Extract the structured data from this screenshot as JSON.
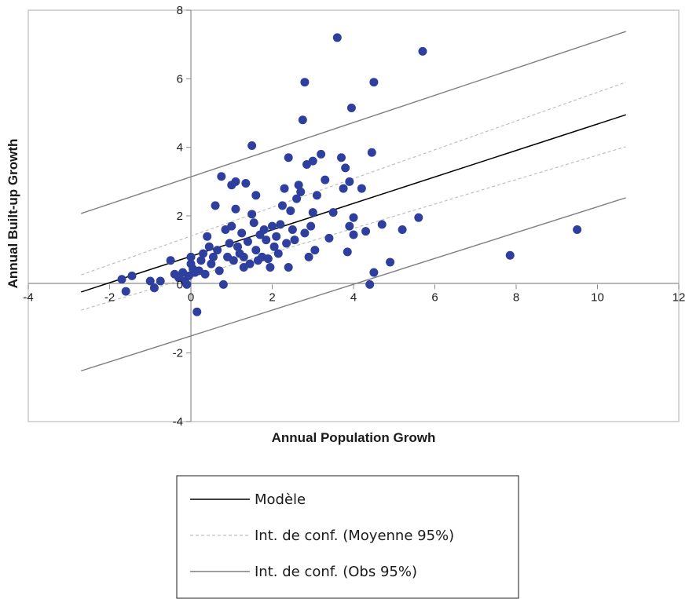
{
  "chart_data": {
    "type": "scatter",
    "xlabel": "Annual Population Growh",
    "ylabel": "Annual Built-up Growth",
    "xlim": [
      -4,
      12
    ],
    "ylim": [
      -4,
      8
    ],
    "x_ticks": [
      "-4",
      "-2",
      "0",
      "2",
      "4",
      "6",
      "8",
      "10",
      "12"
    ],
    "y_ticks": [
      "-4",
      "-2",
      "0",
      "2",
      "4",
      "6",
      "8"
    ],
    "grid": false,
    "legend_position": "bottom",
    "colors": {
      "points": "#2e3f9e",
      "model": "#000000",
      "mean_ci": "#bfbfbf",
      "obs_ci": "#7f7f7f",
      "axis": "#8c8c8c",
      "frame": "#c8c8c8"
    },
    "lines": [
      {
        "name": "Modèle",
        "style": "solid",
        "x": [
          -2.7,
          10.7
        ],
        "y": [
          -0.22,
          4.95
        ]
      },
      {
        "name": "Int. de conf. (Moyenne 95%)",
        "style": "dashed",
        "x": [
          -2.7,
          10.7
        ],
        "y": [
          0.28,
          5.9
        ]
      },
      {
        "name": "Int. de conf. (Moyenne 95%)",
        "style": "dashed",
        "x": [
          -2.7,
          10.7
        ],
        "y": [
          -0.75,
          4.02
        ]
      },
      {
        "name": "Int. de conf. (Obs 95%)",
        "style": "solid",
        "x": [
          -2.7,
          10.7
        ],
        "y": [
          2.07,
          7.38
        ]
      },
      {
        "name": "Int. de conf. (Obs 95%)",
        "style": "solid",
        "x": [
          -2.7,
          10.7
        ],
        "y": [
          -2.52,
          2.53
        ]
      }
    ],
    "points": [
      [
        -1.7,
        0.15
      ],
      [
        -1.6,
        -0.2
      ],
      [
        -1.45,
        0.25
      ],
      [
        -1.0,
        0.1
      ],
      [
        -0.9,
        -0.1
      ],
      [
        -0.75,
        0.1
      ],
      [
        -0.5,
        0.7
      ],
      [
        -0.4,
        0.3
      ],
      [
        -0.3,
        0.2
      ],
      [
        -0.2,
        0.35
      ],
      [
        -0.15,
        0.1
      ],
      [
        -0.1,
        0.0
      ],
      [
        -0.05,
        0.25
      ],
      [
        0.0,
        0.8
      ],
      [
        0.0,
        0.6
      ],
      [
        0.05,
        0.45
      ],
      [
        0.1,
        0.35
      ],
      [
        0.15,
        -0.8
      ],
      [
        0.2,
        0.4
      ],
      [
        0.25,
        0.7
      ],
      [
        0.3,
        0.9
      ],
      [
        0.35,
        0.3
      ],
      [
        0.4,
        1.4
      ],
      [
        0.45,
        1.1
      ],
      [
        0.5,
        0.6
      ],
      [
        0.55,
        0.8
      ],
      [
        0.6,
        2.3
      ],
      [
        0.65,
        1.0
      ],
      [
        0.7,
        0.4
      ],
      [
        0.75,
        3.15
      ],
      [
        0.8,
        0.0
      ],
      [
        0.85,
        1.6
      ],
      [
        0.9,
        0.8
      ],
      [
        0.95,
        1.2
      ],
      [
        1.0,
        2.9
      ],
      [
        1.0,
        1.7
      ],
      [
        1.05,
        0.7
      ],
      [
        1.1,
        3.0
      ],
      [
        1.1,
        2.2
      ],
      [
        1.15,
        1.1
      ],
      [
        1.2,
        0.9
      ],
      [
        1.25,
        1.5
      ],
      [
        1.3,
        0.5
      ],
      [
        1.3,
        0.8
      ],
      [
        1.35,
        2.95
      ],
      [
        1.4,
        1.25
      ],
      [
        1.45,
        0.6
      ],
      [
        1.5,
        2.05
      ],
      [
        1.5,
        4.05
      ],
      [
        1.55,
        1.8
      ],
      [
        1.6,
        1.0
      ],
      [
        1.6,
        2.6
      ],
      [
        1.65,
        0.7
      ],
      [
        1.7,
        1.45
      ],
      [
        1.75,
        0.8
      ],
      [
        1.8,
        1.6
      ],
      [
        1.85,
        1.3
      ],
      [
        1.9,
        0.75
      ],
      [
        1.95,
        0.5
      ],
      [
        2.0,
        1.7
      ],
      [
        2.05,
        1.1
      ],
      [
        2.1,
        1.4
      ],
      [
        2.15,
        0.9
      ],
      [
        2.2,
        1.75
      ],
      [
        2.25,
        2.3
      ],
      [
        2.3,
        2.8
      ],
      [
        2.35,
        1.2
      ],
      [
        2.4,
        0.5
      ],
      [
        2.4,
        3.7
      ],
      [
        2.45,
        2.15
      ],
      [
        2.5,
        1.6
      ],
      [
        2.55,
        1.3
      ],
      [
        2.6,
        2.5
      ],
      [
        2.65,
        2.9
      ],
      [
        2.7,
        2.7
      ],
      [
        2.75,
        4.8
      ],
      [
        2.8,
        5.9
      ],
      [
        2.8,
        1.5
      ],
      [
        2.85,
        3.5
      ],
      [
        2.9,
        0.8
      ],
      [
        2.95,
        1.7
      ],
      [
        3.0,
        3.6
      ],
      [
        3.0,
        2.1
      ],
      [
        3.05,
        1.0
      ],
      [
        3.1,
        2.6
      ],
      [
        3.2,
        3.8
      ],
      [
        3.3,
        3.05
      ],
      [
        3.4,
        1.35
      ],
      [
        3.5,
        2.1
      ],
      [
        3.6,
        7.2
      ],
      [
        3.7,
        3.7
      ],
      [
        3.75,
        2.8
      ],
      [
        3.8,
        3.4
      ],
      [
        3.85,
        0.95
      ],
      [
        3.9,
        3.0
      ],
      [
        3.9,
        1.7
      ],
      [
        3.95,
        5.15
      ],
      [
        4.0,
        1.45
      ],
      [
        4.0,
        1.95
      ],
      [
        4.2,
        2.8
      ],
      [
        4.3,
        1.55
      ],
      [
        4.4,
        0.0
      ],
      [
        4.45,
        3.85
      ],
      [
        4.5,
        5.9
      ],
      [
        4.5,
        0.35
      ],
      [
        4.7,
        1.75
      ],
      [
        4.9,
        0.65
      ],
      [
        5.2,
        1.6
      ],
      [
        5.6,
        1.95
      ],
      [
        5.7,
        6.8
      ],
      [
        7.85,
        0.85
      ],
      [
        9.5,
        1.6
      ]
    ]
  },
  "legend": {
    "items": [
      {
        "label": "Modèle",
        "style": "solid",
        "color": "#000000"
      },
      {
        "label": "Int. de conf. (Moyenne 95%)",
        "style": "dashed",
        "color": "#bfbfbf"
      },
      {
        "label": "Int. de conf. (Obs 95%)",
        "style": "solid",
        "color": "#7f7f7f"
      }
    ]
  }
}
